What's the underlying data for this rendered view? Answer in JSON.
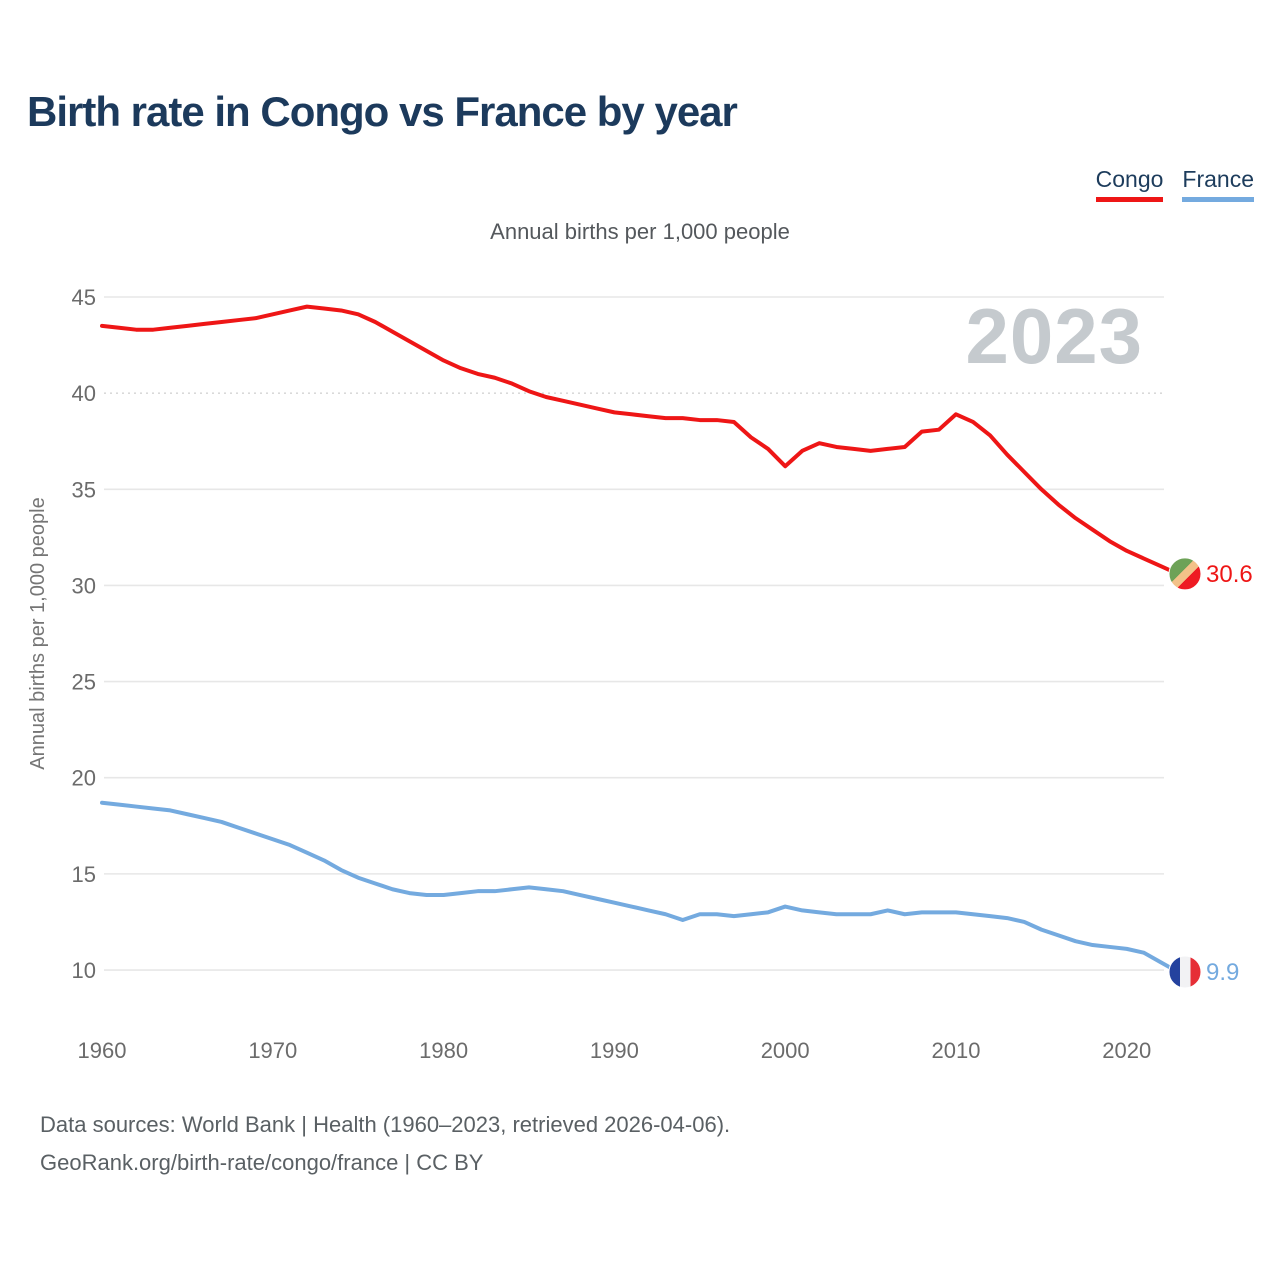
{
  "header": {
    "title": "Birth rate in Congo vs France by year"
  },
  "legend": {
    "items": [
      {
        "label": "Congo",
        "color": "#ee1616"
      },
      {
        "label": "France",
        "color": "#74aadf"
      }
    ]
  },
  "footer": {
    "line1": "Data sources: World Bank | Health (1960–2023, retrieved 2026-04-06).",
    "line2": "GeoRank.org/birth-rate/congo/france | CC BY"
  },
  "chart_data": {
    "type": "line",
    "title": "Annual births per 1,000 people",
    "xlabel": "",
    "ylabel": "Annual births per 1,000 people",
    "watermark": "2023",
    "grid": "on",
    "grid_dotted_at": 40,
    "xlim": [
      1960,
      2023
    ],
    "ylim": [
      10,
      45
    ],
    "x_ticks": [
      1960,
      1970,
      1980,
      1990,
      2000,
      2010,
      2020
    ],
    "y_ticks": [
      45,
      40,
      35,
      30,
      25,
      20,
      15,
      10
    ],
    "x_start_year": 1960,
    "series": [
      {
        "name": "Congo",
        "color": "#ee1616",
        "end_label": "30.6",
        "flag": {
          "type": "congo",
          "colors": [
            "#6da257",
            "#f3c289",
            "#ee1b23"
          ]
        },
        "values": [
          43.5,
          43.4,
          43.3,
          43.3,
          43.4,
          43.5,
          43.6,
          43.7,
          43.8,
          43.9,
          44.1,
          44.3,
          44.5,
          44.4,
          44.3,
          44.1,
          43.7,
          43.2,
          42.7,
          42.2,
          41.7,
          41.3,
          41.0,
          40.8,
          40.5,
          40.1,
          39.8,
          39.6,
          39.4,
          39.2,
          39.0,
          38.9,
          38.8,
          38.7,
          38.7,
          38.6,
          38.6,
          38.5,
          37.7,
          37.1,
          36.2,
          37.0,
          37.4,
          37.2,
          37.1,
          37.0,
          37.1,
          37.2,
          38.0,
          38.1,
          38.9,
          38.5,
          37.8,
          36.8,
          35.9,
          35.0,
          34.2,
          33.5,
          32.9,
          32.3,
          31.8,
          31.4,
          31.0,
          30.6
        ]
      },
      {
        "name": "France",
        "color": "#74aadf",
        "end_label": "9.9",
        "flag": {
          "type": "france",
          "colors": [
            "#24429e",
            "#f2f2f4",
            "#e62e36"
          ]
        },
        "values": [
          18.7,
          18.6,
          18.5,
          18.4,
          18.3,
          18.1,
          17.9,
          17.7,
          17.4,
          17.1,
          16.8,
          16.5,
          16.1,
          15.7,
          15.2,
          14.8,
          14.5,
          14.2,
          14.0,
          13.9,
          13.9,
          14.0,
          14.1,
          14.1,
          14.2,
          14.3,
          14.2,
          14.1,
          13.9,
          13.7,
          13.5,
          13.3,
          13.1,
          12.9,
          12.6,
          12.9,
          12.9,
          12.8,
          12.9,
          13.0,
          13.3,
          13.1,
          13.0,
          12.9,
          12.9,
          12.9,
          13.1,
          12.9,
          13.0,
          13.0,
          13.0,
          12.9,
          12.8,
          12.7,
          12.5,
          12.1,
          11.8,
          11.5,
          11.3,
          11.2,
          11.1,
          10.9,
          10.4,
          9.9
        ]
      }
    ]
  }
}
